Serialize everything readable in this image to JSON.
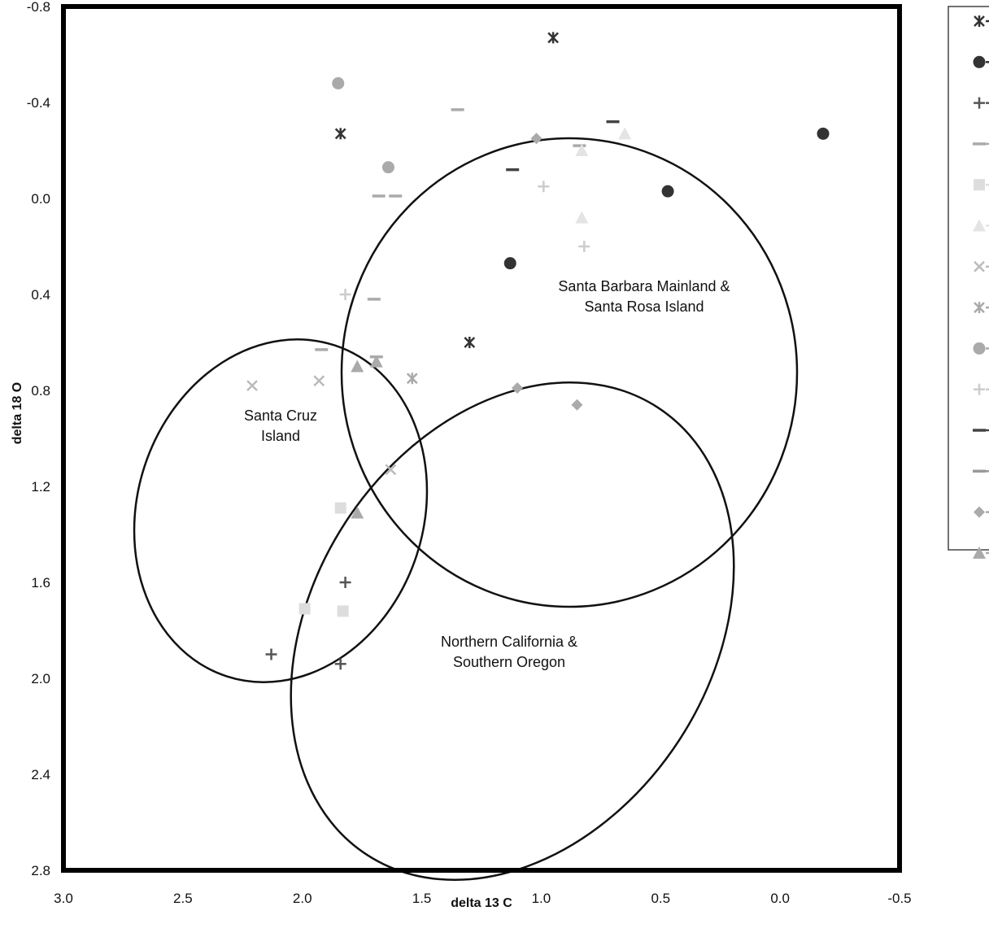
{
  "chart_data": {
    "type": "scatter",
    "title": "",
    "xlabel": "delta 13 C",
    "ylabel": "delta 18 O",
    "x_reversed": true,
    "y_reversed": true,
    "xlim": [
      3.0,
      -0.5
    ],
    "ylim": [
      -0.8,
      2.8
    ],
    "x_ticks": [
      "3.0",
      "2.5",
      "2.0",
      "1.5",
      "1.0",
      "0.5",
      "0.0",
      "-0.5"
    ],
    "y_ticks": [
      "-0.8",
      "-0.4",
      "0.0",
      "0.4",
      "0.8",
      "1.2",
      "1.6",
      "2.0",
      "2.4",
      "2.8"
    ],
    "grid": false,
    "legend_position": "right",
    "regions": [
      {
        "label_lines": [
          "Santa Barbara Mainland &",
          "Santa Rosa Island"
        ]
      },
      {
        "label_lines": [
          "Santa Cruz",
          "Island"
        ]
      },
      {
        "label_lines": [
          "Northern California &",
          "Southern Oregon"
        ]
      }
    ],
    "series": [
      {
        "marker": "star",
        "color": "#333333",
        "points": [
          [
            0.95,
            -0.67
          ],
          [
            1.84,
            -0.27
          ],
          [
            1.3,
            0.6
          ]
        ]
      },
      {
        "marker": "circle",
        "color": "#333333",
        "points": [
          [
            -0.18,
            -0.27
          ],
          [
            0.47,
            -0.03
          ],
          [
            1.13,
            0.27
          ]
        ]
      },
      {
        "marker": "plus",
        "color": "#555555",
        "points": [
          [
            1.82,
            1.6
          ],
          [
            2.13,
            1.9
          ],
          [
            1.84,
            1.94
          ]
        ]
      },
      {
        "marker": "dash",
        "color": "#aaaaaa",
        "points": [
          [
            1.35,
            -0.37
          ],
          [
            1.68,
            -0.01
          ],
          [
            1.61,
            -0.01
          ],
          [
            1.7,
            0.42
          ],
          [
            1.92,
            0.63
          ],
          [
            0.84,
            -0.22
          ],
          [
            1.69,
            0.66
          ]
        ]
      },
      {
        "marker": "square",
        "color": "#dddddd",
        "points": [
          [
            1.84,
            1.29
          ],
          [
            1.99,
            1.71
          ],
          [
            1.83,
            1.72
          ]
        ]
      },
      {
        "marker": "triangle",
        "color": "#e4e4e4",
        "points": [
          [
            0.65,
            -0.27
          ],
          [
            0.83,
            -0.2
          ],
          [
            0.83,
            0.08
          ]
        ]
      },
      {
        "marker": "x",
        "color": "#bbbbbb",
        "points": [
          [
            2.21,
            0.78
          ],
          [
            1.93,
            0.76
          ],
          [
            1.63,
            1.13
          ]
        ]
      },
      {
        "marker": "star",
        "color": "#aaaaaa",
        "points": [
          [
            1.54,
            0.75
          ]
        ]
      },
      {
        "marker": "circle",
        "color": "#aaaaaa",
        "points": [
          [
            1.85,
            -0.48
          ],
          [
            1.64,
            -0.13
          ]
        ]
      },
      {
        "marker": "plus",
        "color": "#cccccc",
        "points": [
          [
            0.99,
            -0.05
          ],
          [
            0.82,
            0.2
          ],
          [
            1.82,
            0.4
          ]
        ]
      },
      {
        "marker": "dash",
        "color": "#444444",
        "points": [
          [
            0.7,
            -0.32
          ],
          [
            1.12,
            -0.12
          ]
        ]
      },
      {
        "marker": "dash",
        "color": "#999999",
        "points": []
      },
      {
        "marker": "diamond",
        "color": "#aaaaaa",
        "points": [
          [
            1.02,
            -0.25
          ],
          [
            1.1,
            0.79
          ],
          [
            0.85,
            0.86
          ]
        ]
      },
      {
        "marker": "triangle",
        "color": "#aaaaaa",
        "points": [
          [
            1.77,
            0.7
          ],
          [
            1.69,
            0.68
          ],
          [
            1.77,
            1.31
          ]
        ]
      }
    ]
  }
}
